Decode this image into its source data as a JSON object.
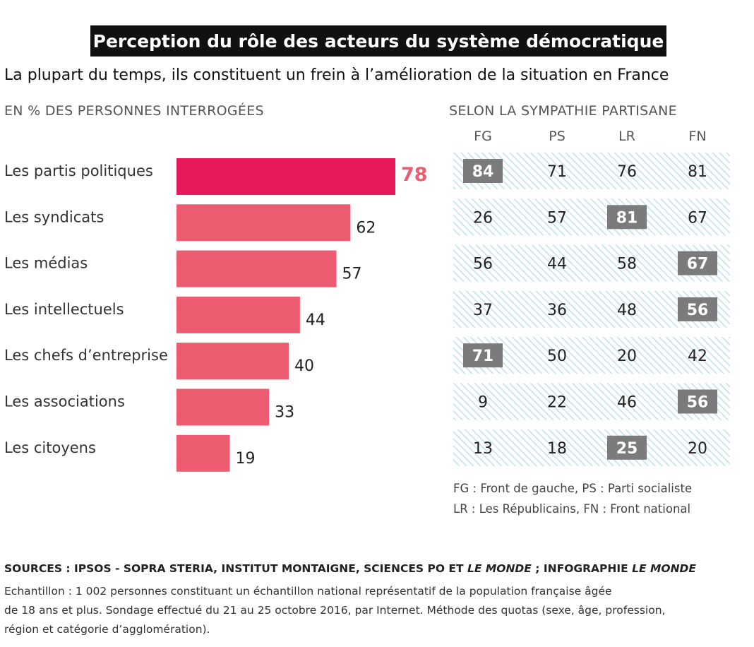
{
  "title": "Perception du rôle des acteurs du système démocratique",
  "subtitle": "La plupart du temps, ils constituent un frein à l’amélioration de la situation en France",
  "left_header": "EN % DES PERSONNES INTERROGÉES",
  "right_header": "SELON LA SYMPATHIE PARTISANE",
  "legend": {
    "line1": "FG : Front de gauche, PS : Parti socialiste",
    "line2": "LR : Les Républicains, FN : Front national"
  },
  "sources": {
    "part1": "SOURCES : IPSOS - SOPRA STERIA, INSTITUT MONTAIGNE, SCIENCES PO ET ",
    "part2": "LE MONDE",
    "part3": " ; INFOGRAPHIE ",
    "part4": "LE MONDE"
  },
  "note": {
    "line1": "Echantillon : 1 002 personnes  constituant un échantillon national représentatif de la population française âgée",
    "line2": "de 18 ans et plus. Sondage effectué du 21 au 25 octobre 2016, par Internet. Méthode des quotas (sexe, âge, profession,",
    "line3": "région et catégorie d’agglomération)."
  },
  "colors": {
    "highlight_bar": "#e8195a",
    "bar": "#ec5b70",
    "highlight_label": "#ec5b70",
    "cell_highlight": "#7b7b7b",
    "hatch": "#bfe0ea"
  },
  "chart_data": {
    "type": "bar",
    "orientation": "horizontal",
    "categories": [
      "Les partis politiques",
      "Les syndicats",
      "Les médias",
      "Les intellectuels",
      "Les chefs d’entreprise",
      "Les associations",
      "Les citoyens"
    ],
    "values": [
      78,
      62,
      57,
      44,
      40,
      33,
      19
    ],
    "highlighted_index": 0,
    "table": {
      "columns": [
        "FG",
        "PS",
        "LR",
        "FN"
      ],
      "rows": [
        [
          84,
          71,
          76,
          81
        ],
        [
          26,
          57,
          81,
          67
        ],
        [
          56,
          44,
          58,
          67
        ],
        [
          37,
          36,
          48,
          56
        ],
        [
          71,
          50,
          20,
          42
        ],
        [
          9,
          22,
          46,
          56
        ],
        [
          13,
          18,
          25,
          20
        ]
      ],
      "highlighted": [
        [
          0,
          0
        ],
        [
          1,
          2
        ],
        [
          2,
          3
        ],
        [
          3,
          3
        ],
        [
          4,
          0
        ],
        [
          5,
          3
        ],
        [
          6,
          2
        ]
      ]
    }
  }
}
